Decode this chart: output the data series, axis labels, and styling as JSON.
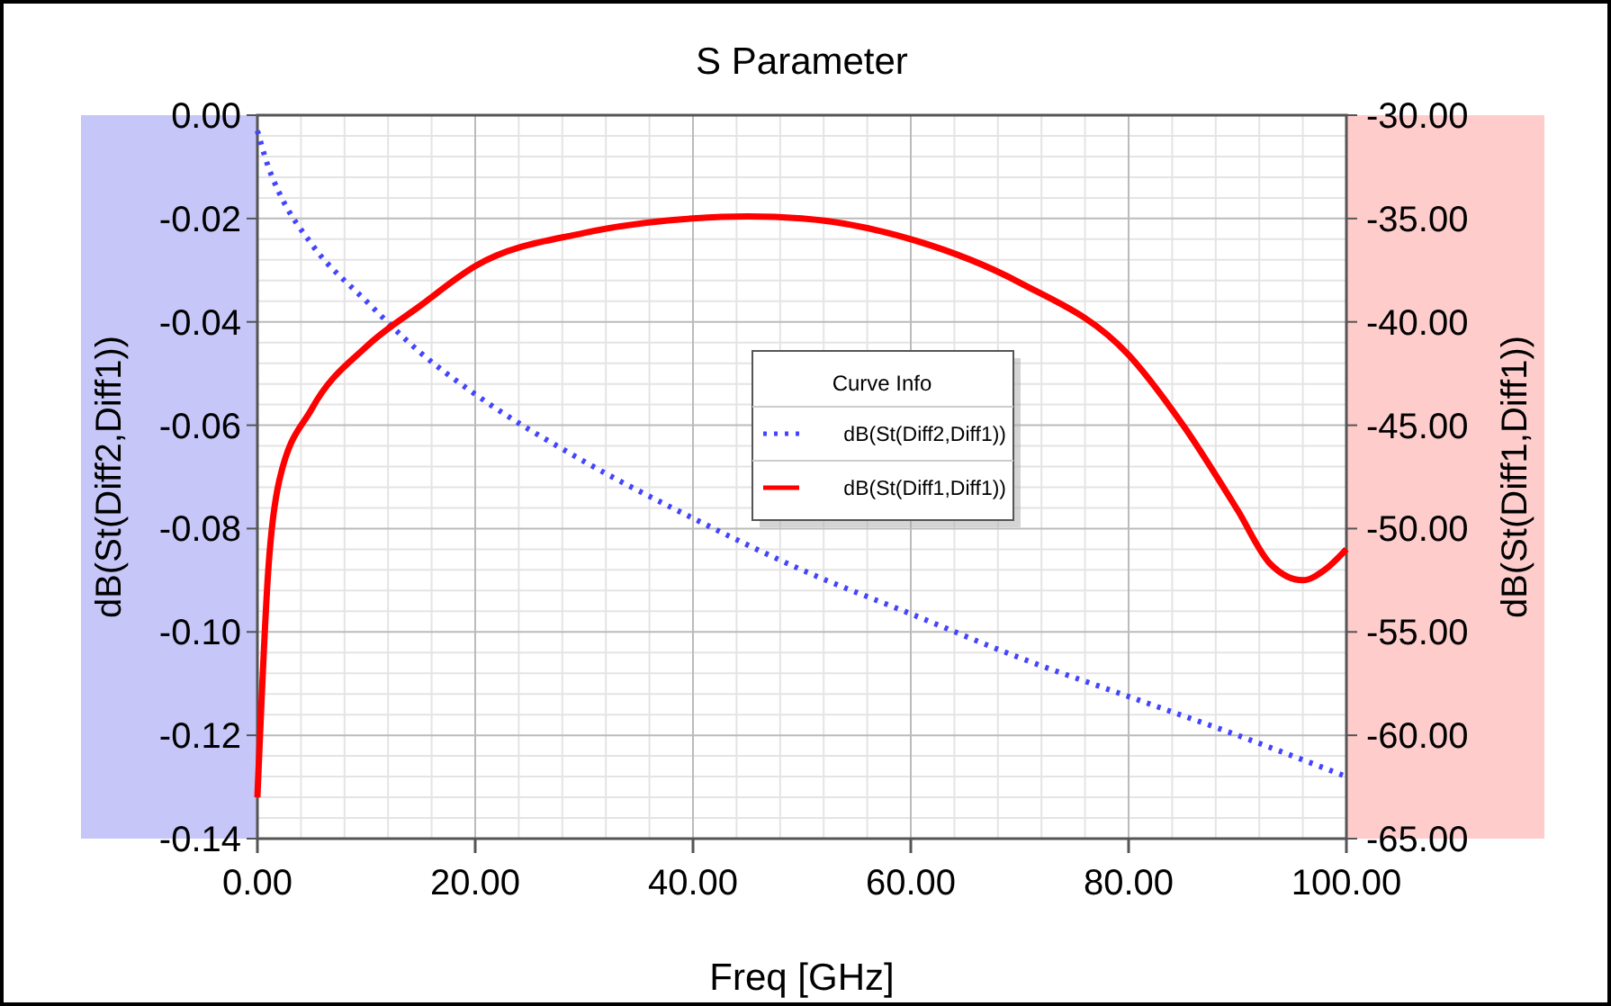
{
  "chart_data": {
    "type": "line",
    "title": "S Parameter",
    "xlabel": "Freq [GHz]",
    "ylabel": "dB(St(Diff2,Diff1))",
    "y2label": "dB(St(Diff1,Diff1))",
    "legend_title": "Curve Info",
    "legend": "center",
    "grid": true,
    "xlim": [
      0,
      100
    ],
    "xticks": [
      {
        "value": 0,
        "label": "0.00"
      },
      {
        "value": 20,
        "label": "20.00"
      },
      {
        "value": 40,
        "label": "40.00"
      },
      {
        "value": 60,
        "label": "60.00"
      },
      {
        "value": 80,
        "label": "80.00"
      },
      {
        "value": 100,
        "label": "100.00"
      }
    ],
    "ylim": [
      -0.14,
      0
    ],
    "yticks": [
      {
        "value": -0.14,
        "label": "-0.14"
      },
      {
        "value": -0.12,
        "label": "-0.12"
      },
      {
        "value": -0.1,
        "label": "-0.10"
      },
      {
        "value": -0.08,
        "label": "-0.08"
      },
      {
        "value": -0.06,
        "label": "-0.06"
      },
      {
        "value": -0.04,
        "label": "-0.04"
      },
      {
        "value": -0.02,
        "label": "-0.02"
      },
      {
        "value": 0,
        "label": "0.00"
      }
    ],
    "y2lim": [
      -65,
      -30
    ],
    "y2ticks": [
      {
        "value": -65,
        "label": "-65.00"
      },
      {
        "value": -60,
        "label": "-60.00"
      },
      {
        "value": -55,
        "label": "-55.00"
      },
      {
        "value": -50,
        "label": "-50.00"
      },
      {
        "value": -45,
        "label": "-45.00"
      },
      {
        "value": -40,
        "label": "-40.00"
      },
      {
        "value": -35,
        "label": "-35.00"
      },
      {
        "value": -30,
        "label": "-30.00"
      }
    ],
    "series": [
      {
        "name": "dB(St(Diff2,Diff1))",
        "color": "#4444ff",
        "line_style": "dotted",
        "x": [
          0,
          1,
          2,
          5,
          10,
          15,
          20,
          30,
          40,
          50,
          60,
          70,
          80,
          90,
          100
        ],
        "values": [
          -0.003,
          -0.01,
          -0.015,
          -0.025,
          -0.036,
          -0.046,
          -0.054,
          -0.067,
          -0.078,
          -0.088,
          -0.0965,
          -0.105,
          -0.1125,
          -0.12,
          -0.128
        ]
      },
      {
        "name": "dB(St(Diff1,Diff1))",
        "color": "#ff0000",
        "line_style": "solid",
        "axis": "y2",
        "x": [
          0,
          1,
          2,
          5,
          10,
          15,
          20,
          30,
          40,
          45,
          50,
          60,
          70,
          80,
          85,
          90,
          93,
          96,
          98,
          100
        ],
        "values": [
          -63,
          -52,
          -47.7,
          -44.2,
          -41.2,
          -39.2,
          -37.3,
          -35.7,
          -35,
          -34.9,
          -35,
          -36,
          -38.1,
          -41.6,
          -45,
          -49.1,
          -51.7,
          -52.5,
          -52,
          -51
        ]
      }
    ]
  }
}
